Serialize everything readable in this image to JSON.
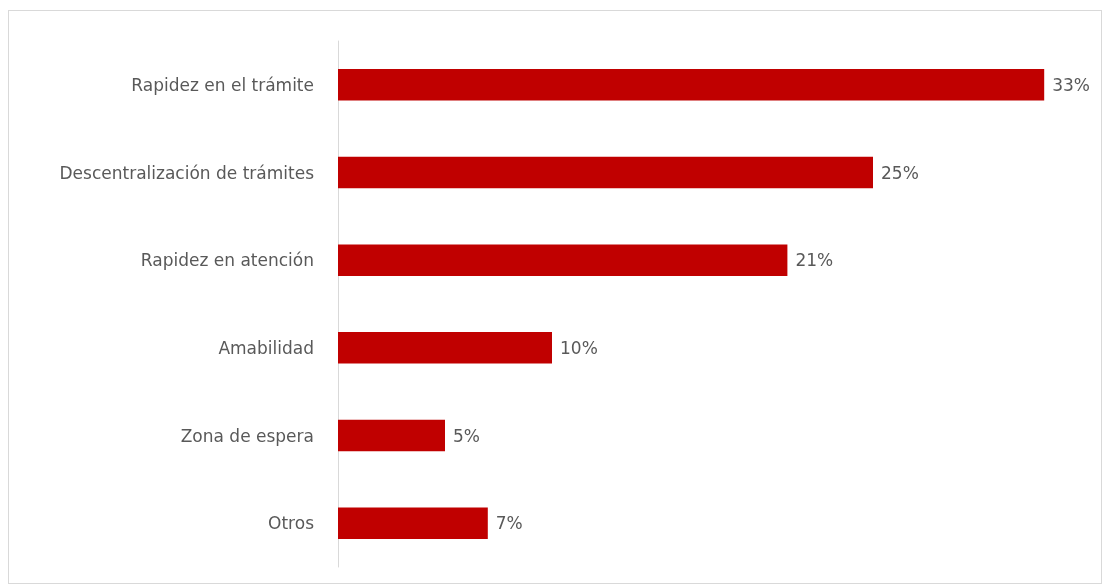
{
  "chart_data": {
    "type": "bar",
    "orientation": "horizontal",
    "categories": [
      "Rapidez en el trámite",
      "Descentralización de trámites",
      "Rapidez en atención",
      "Amabilidad",
      "Zona de espera",
      "Otros"
    ],
    "values": [
      33,
      25,
      21,
      10,
      5,
      7
    ],
    "value_labels": [
      "33%",
      "25%",
      "21%",
      "10%",
      "5%",
      "7%"
    ],
    "color": "#c00000"
  }
}
